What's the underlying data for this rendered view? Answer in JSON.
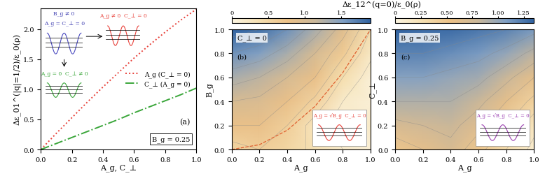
{
  "chart_data": [
    {
      "type": "line",
      "panel": "(a)",
      "x": [
        0,
        0.1,
        0.2,
        0.3,
        0.4,
        0.5,
        0.6,
        0.7,
        0.8,
        0.9,
        1.0
      ],
      "series": [
        {
          "name": "A_g (C_⊥ = 0)",
          "color": "#e8413a",
          "line_style": "dotted",
          "values": [
            0,
            0.27,
            0.53,
            0.79,
            1.04,
            1.28,
            1.52,
            1.74,
            1.95,
            2.15,
            2.33
          ]
        },
        {
          "name": "C_⊥ (A_g = 0)",
          "color": "#3aa63a",
          "line_style": "dashdot",
          "values": [
            0,
            0.1,
            0.2,
            0.3,
            0.4,
            0.5,
            0.61,
            0.71,
            0.81,
            0.91,
            1.02
          ]
        }
      ],
      "xlabel": "A_g, C_⊥",
      "ylabel": "Δε_01^(|q|=1/2)/ε_0(ρ)",
      "xlim": [
        0,
        1
      ],
      "xticks": [
        {
          "value": 0,
          "label": "0.0"
        },
        0.2,
        0.4,
        0.6,
        0.8,
        {
          "value": 1,
          "label": "1.0"
        }
      ],
      "ylim": [
        0,
        2.35
      ],
      "yticks": [
        {
          "value": 0,
          "label": "0.0"
        },
        0.5,
        {
          "value": 1,
          "label": "1.0"
        },
        1.5,
        {
          "value": 2,
          "label": "2.0"
        }
      ],
      "legend": "center right",
      "annotations": {
        "box": "B_g = 0.25",
        "blue_top": "B_g ≠ 0",
        "blue_bottom": "A_g = C_⊥ = 0",
        "red": "A_g ≠ 0  C_⊥ = 0",
        "green": "A_g = 0  C_⊥ ≠ 0"
      }
    },
    {
      "type": "heatmap",
      "panel": "(b)",
      "colorbar_label": "Δε_12^(q=0)/ε_0(ρ)",
      "x": [
        0,
        0.2,
        0.4,
        0.6,
        0.8,
        1.0
      ],
      "y": [
        0,
        0.2,
        0.4,
        0.6,
        0.8,
        1.0
      ],
      "cells": [
        [
          0.5,
          0.6,
          0.5,
          0.35,
          0.2,
          0.1
        ],
        [
          0.8,
          0.8,
          0.6,
          0.3,
          0.1,
          0.2
        ],
        [
          1.0,
          0.95,
          0.8,
          0.55,
          0.2,
          0.1
        ],
        [
          1.3,
          1.2,
          1.0,
          0.8,
          0.4,
          0.1
        ],
        [
          1.6,
          1.5,
          1.3,
          1.0,
          0.65,
          0.25
        ],
        [
          1.9,
          1.8,
          1.6,
          1.3,
          0.9,
          0.4
        ]
      ],
      "colorbar": {
        "range": [
          0,
          1.9
        ],
        "ticks": [
          0,
          0.5,
          {
            "value": 1,
            "label": "1.0"
          },
          1.5
        ]
      },
      "curve": {
        "x": [
          0,
          0.2,
          0.4,
          0.6,
          0.8,
          1.0
        ],
        "values": [
          0,
          0.04,
          0.16,
          0.36,
          0.64,
          1.0
        ],
        "line_style": "dashed",
        "color": "#e06030"
      },
      "xlabel": "A_g",
      "ylabel": "B_g",
      "xlim": [
        0,
        1
      ],
      "ylim": [
        0,
        1
      ],
      "xticks": [
        {
          "value": 0,
          "label": "0.0"
        },
        0.2,
        0.4,
        0.6,
        0.8,
        {
          "value": 1,
          "label": "1.0"
        }
      ],
      "yticks": [
        {
          "value": 0,
          "label": "0.0"
        },
        0.2,
        0.4,
        0.6,
        0.8,
        {
          "value": 1,
          "label": "1.0"
        }
      ],
      "annotations": {
        "corner": "C_⊥ = 0",
        "inset": "A_g = √B_g  C_⊥ = 0"
      }
    },
    {
      "type": "heatmap",
      "panel": "(c)",
      "x": [
        0,
        0.2,
        0.4,
        0.6,
        0.8,
        1.0
      ],
      "y": [
        0,
        0.2,
        0.4,
        0.6,
        0.8,
        1.0
      ],
      "cells": [
        [
          0.5,
          0.6,
          0.7,
          0.5,
          0.3,
          0.1
        ],
        [
          0.7,
          0.75,
          0.8,
          0.65,
          0.45,
          0.2
        ],
        [
          0.9,
          0.9,
          0.9,
          0.8,
          0.6,
          0.4
        ],
        [
          1.05,
          1.05,
          1.0,
          0.95,
          0.8,
          0.6
        ],
        [
          1.2,
          1.2,
          1.15,
          1.1,
          1.0,
          0.85
        ],
        [
          1.35,
          1.3,
          1.3,
          1.25,
          1.2,
          1.1
        ]
      ],
      "colorbar": {
        "range": [
          0,
          1.35
        ],
        "ticks": [
          0,
          0.25,
          {
            "value": 0.5,
            "label": "0.50"
          },
          0.75,
          {
            "value": 1,
            "label": "1.00"
          },
          1.25
        ]
      },
      "xlabel": "A_g",
      "ylabel": "C_⊥",
      "xlim": [
        0,
        1
      ],
      "ylim": [
        0,
        1
      ],
      "xticks": [
        {
          "value": 0,
          "label": "0.0"
        },
        0.2,
        0.4,
        0.6,
        0.8,
        {
          "value": 1,
          "label": "1.0"
        }
      ],
      "yticks": [
        {
          "value": 0,
          "label": "0.0"
        },
        0.2,
        0.4,
        0.6,
        0.8,
        {
          "value": 1,
          "label": "1.0"
        }
      ],
      "annotations": {
        "corner": "B_g = 0.25",
        "inset": "A_g = √B_g  C_⊥ = 0"
      }
    }
  ]
}
